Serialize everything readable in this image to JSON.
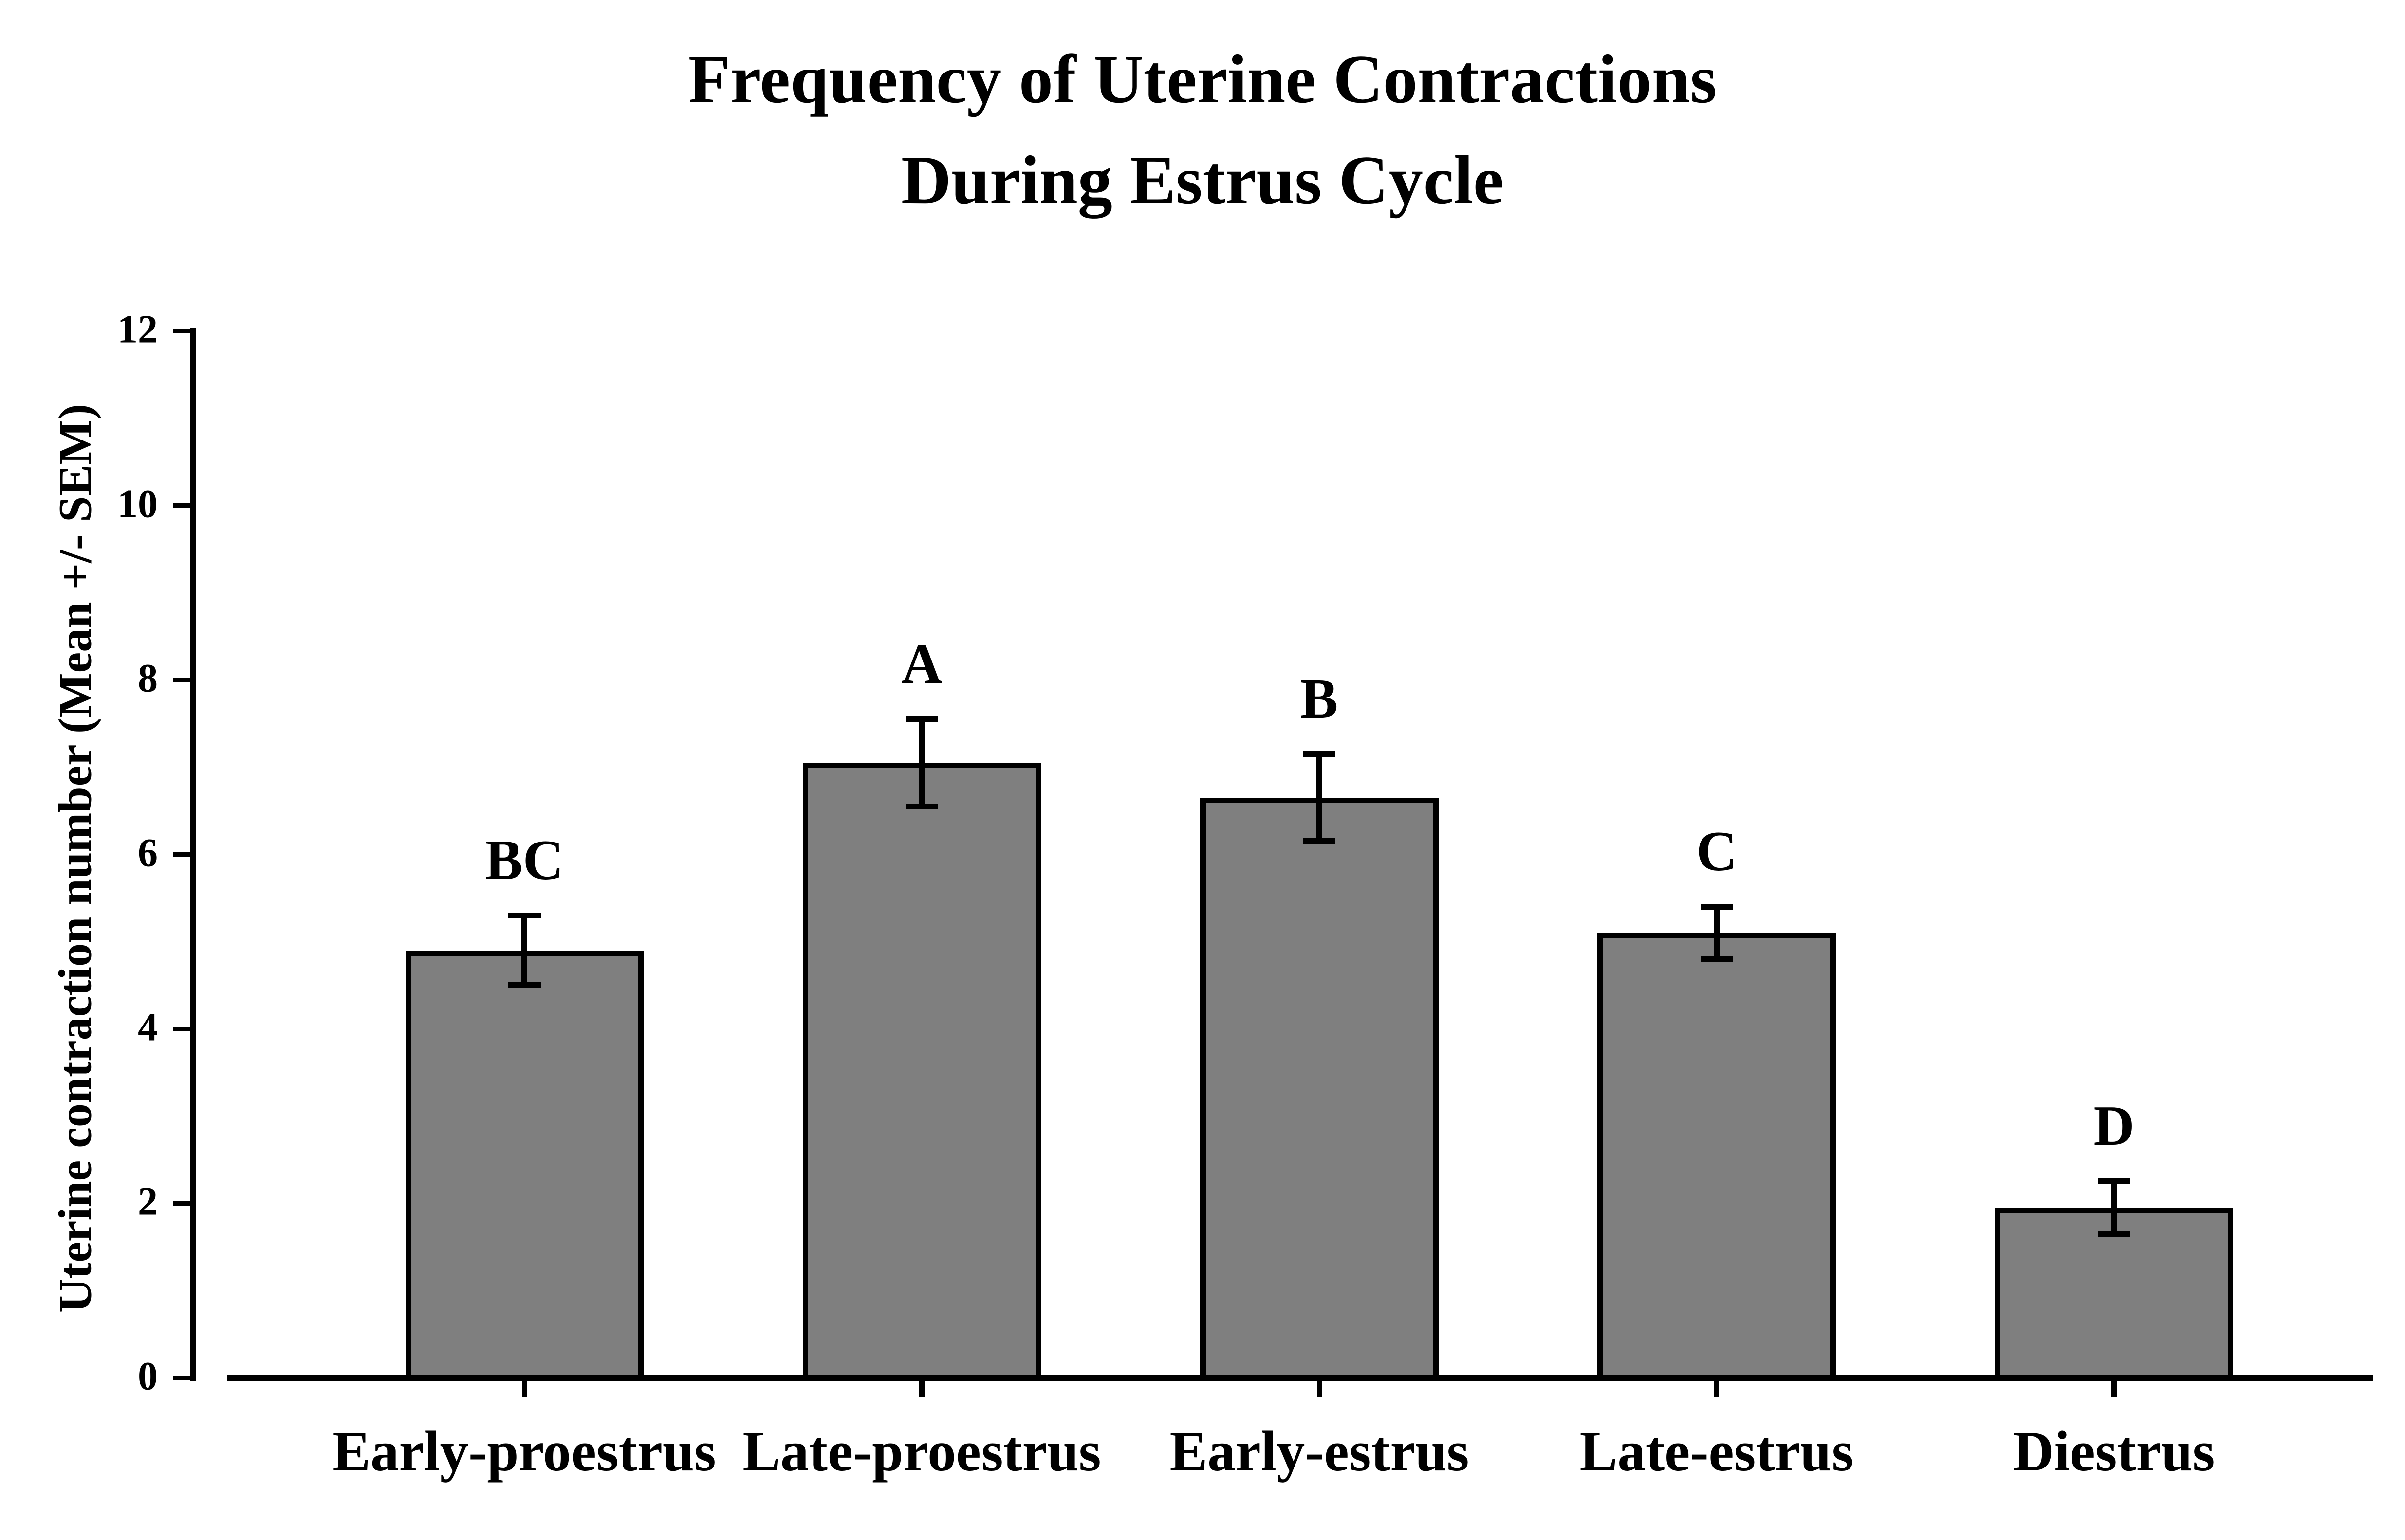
{
  "figure": {
    "background": "#ffffff",
    "text_color": "#000000"
  },
  "chart_data": {
    "type": "bar",
    "title_lines": [
      "Frequency of Uterine Contractions",
      "During Estrus Cycle"
    ],
    "ylabel": "Uterine contraction number (Mean +/- SEM)",
    "xlabel": "",
    "categories": [
      "Early-proestrus",
      "Late-proestrus",
      "Early-estrus",
      "Late-estrus",
      "Diestrus"
    ],
    "values": [
      4.9,
      7.05,
      6.65,
      5.1,
      1.95
    ],
    "sem": [
      0.4,
      0.5,
      0.5,
      0.3,
      0.3
    ],
    "significance_letters": [
      "BC",
      "A",
      "B",
      "C",
      "D"
    ],
    "ylim": [
      0,
      12
    ],
    "yticks": [
      0,
      2,
      4,
      6,
      8,
      10,
      12
    ],
    "grid": false,
    "legend": null,
    "bar_fill": "#7f7f7f",
    "bar_border": "#000000",
    "axis_color": "#000000"
  }
}
